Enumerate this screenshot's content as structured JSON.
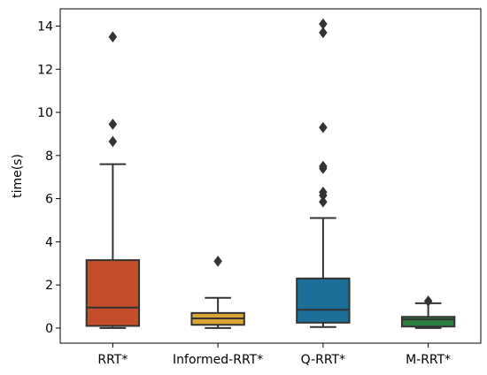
{
  "chart_data": {
    "type": "box",
    "title": "",
    "xlabel": "",
    "ylabel": "time(s)",
    "ylim": [
      -0.7,
      14.8
    ],
    "yticks": [
      0,
      2,
      4,
      6,
      8,
      10,
      12,
      14
    ],
    "ytick_labels": [
      "0",
      "2",
      "4",
      "6",
      "8",
      "10",
      "12",
      "14"
    ],
    "grid": false,
    "legend": "none",
    "categories": [
      "RRT*",
      "Informed-RRT*",
      "Q-RRT*",
      "M-RRT*"
    ],
    "boxes": [
      {
        "label": "RRT*",
        "color": "#c44e29",
        "whisker_low": 0.0,
        "q1": 0.1,
        "median": 0.95,
        "q3": 3.15,
        "whisker_high": 7.6,
        "outliers": [
          8.65,
          9.45,
          13.5
        ]
      },
      {
        "label": "Informed-RRT*",
        "color": "#dca634",
        "whisker_low": 0.0,
        "q1": 0.15,
        "median": 0.45,
        "q3": 0.7,
        "whisker_high": 1.4,
        "outliers": [
          3.1
        ]
      },
      {
        "label": "Q-RRT*",
        "color": "#1c6f98",
        "whisker_low": 0.05,
        "q1": 0.25,
        "median": 0.85,
        "q3": 2.3,
        "whisker_high": 5.1,
        "outliers": [
          5.85,
          6.15,
          6.3,
          7.4,
          7.5,
          9.3,
          13.7,
          14.1
        ]
      },
      {
        "label": "M-RRT*",
        "color": "#2d7f3f",
        "whisker_low": 0.0,
        "q1": 0.07,
        "median": 0.4,
        "q3": 0.52,
        "whisker_high": 1.15,
        "outliers": [
          1.25
        ]
      }
    ]
  }
}
